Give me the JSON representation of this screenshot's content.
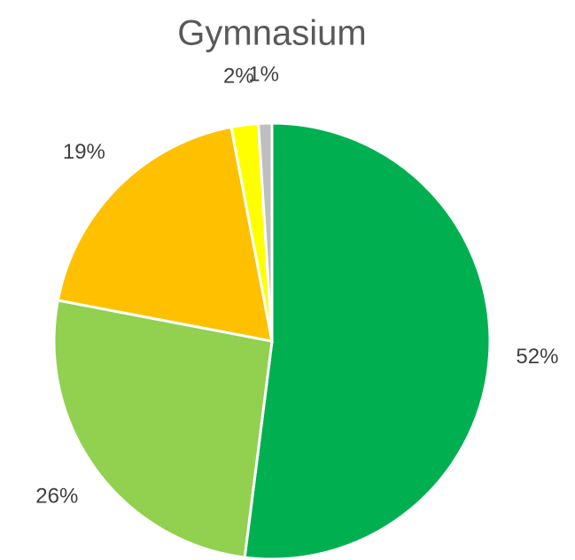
{
  "chart_data": {
    "type": "pie",
    "title": "Gymnasium",
    "values": [
      52,
      26,
      19,
      2,
      1
    ],
    "value_labels": [
      "52%",
      "26%",
      "19%",
      "2%",
      "1%"
    ],
    "colors": [
      "#00b050",
      "#92d050",
      "#ffc000",
      "#ffff00",
      "#bfbfbf"
    ]
  }
}
